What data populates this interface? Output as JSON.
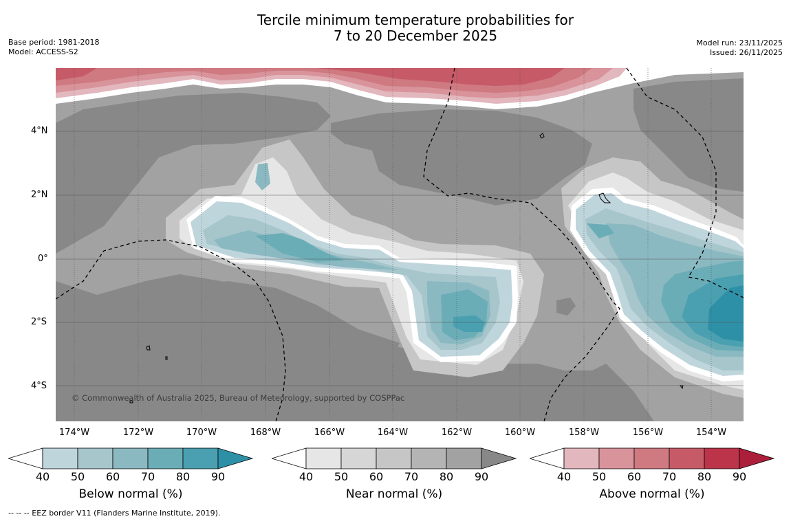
{
  "title_line1": "Tercile minimum temperature probabilities for",
  "title_line2": "7 to 20 December 2025",
  "base_period": "Base period: 1981-2018",
  "model": "Model: ACCESS-S2",
  "model_run": "Model run: 23/11/2025",
  "issued": "Issued: 26/11/2025",
  "copyright": "© Commonwealth of Australia 2025, Bureau of Meteorology, supported by COSPPac",
  "lat_ticks": [
    "4°N",
    "2°N",
    "0°",
    "2°S",
    "4°S"
  ],
  "lon_ticks": [
    "174°W",
    "172°W",
    "170°W",
    "168°W",
    "166°W",
    "164°W",
    "162°W",
    "160°W",
    "158°W",
    "156°W",
    "154°W"
  ],
  "colorbars": {
    "below": {
      "label": "Below normal (%)",
      "ticks": [
        "40",
        "50",
        "60",
        "70",
        "80",
        "90"
      ],
      "colors": [
        "#ffffff",
        "#bfd5dc",
        "#a6c6cc",
        "#8bb9c1",
        "#6badb7",
        "#4aa0b0",
        "#2e90a6"
      ]
    },
    "near": {
      "label": "Near normal (%)",
      "ticks": [
        "40",
        "50",
        "60",
        "70",
        "80",
        "90"
      ],
      "colors": [
        "#ffffff",
        "#e6e6e6",
        "#d6d6d6",
        "#c6c6c6",
        "#b4b4b4",
        "#a2a2a2",
        "#888888"
      ]
    },
    "above": {
      "label": "Above normal (%)",
      "ticks": [
        "40",
        "50",
        "60",
        "70",
        "80",
        "90"
      ],
      "colors": [
        "#ffffff",
        "#e2b7bd",
        "#d9939b",
        "#cf7981",
        "#c65a67",
        "#bb3449",
        "#ab1f3a"
      ]
    }
  },
  "footnote": "--  --  -- EEZ border V11 (Flanders Marine Institute, 2019)."
}
